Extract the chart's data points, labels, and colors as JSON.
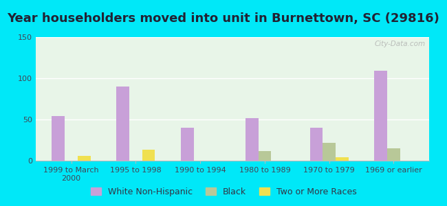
{
  "title": "Year householders moved into unit in Burnettown, SC (29816)",
  "categories": [
    "1999 to March\n2000",
    "1995 to 1998",
    "1990 to 1994",
    "1980 to 1989",
    "1970 to 1979",
    "1969 or earlier"
  ],
  "series": {
    "White Non-Hispanic": [
      54,
      90,
      40,
      52,
      40,
      109
    ],
    "Black": [
      0,
      0,
      0,
      12,
      22,
      15
    ],
    "Two or More Races": [
      6,
      13,
      0,
      0,
      4,
      0
    ]
  },
  "colors": {
    "White Non-Hispanic": "#c8a0d8",
    "Black": "#b8c898",
    "Two or More Races": "#f0e050"
  },
  "ylim": [
    0,
    150
  ],
  "yticks": [
    0,
    50,
    100,
    150
  ],
  "background_color": "#00e8f8",
  "plot_bg": "#e8f5e8",
  "watermark": "City-Data.com",
  "title_fontsize": 13,
  "tick_fontsize": 8,
  "legend_fontsize": 9
}
